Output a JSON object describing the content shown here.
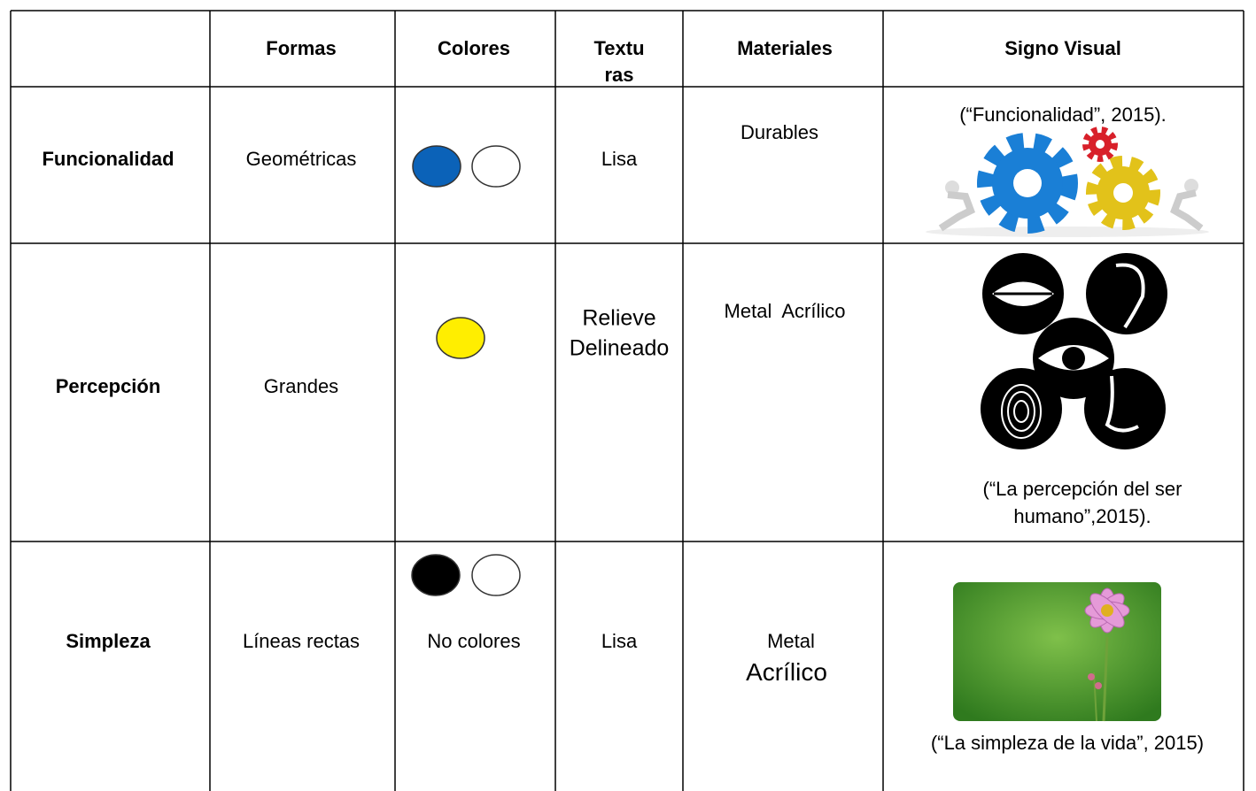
{
  "table": {
    "header": [
      [
        "Formas"
      ],
      [
        "Colores"
      ],
      [
        "Textu",
        "ras"
      ],
      [
        "Materiales"
      ],
      [
        "Signo Visual"
      ]
    ],
    "rows": [
      {
        "label": "Funcionalidad",
        "formas": "Geométricas",
        "texturas": [
          "Lisa"
        ],
        "materiales": [
          "Durables"
        ],
        "signo": [
          "(“Funcionalidad”, 2015)."
        ]
      },
      {
        "label": "Percepción",
        "formas": "Grandes",
        "texturas": [
          "Relieve",
          "Delineado"
        ],
        "materiales": [
          "Metal  Acrílico"
        ],
        "signo": [
          "(“La percepción del ser",
          "humano”,2015)."
        ]
      },
      {
        "label": "Simpleza",
        "formas": "Líneas rectas",
        "colores": [
          "No colores"
        ],
        "texturas": [
          "Lisa"
        ],
        "materiales": [
          "Metal",
          "Acrílico"
        ],
        "signo": [
          "(“La simpleza de la vida”, 2015)"
        ]
      }
    ]
  }
}
